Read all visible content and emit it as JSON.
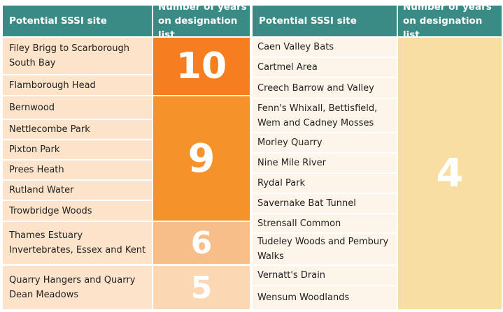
{
  "header": {
    "site_label": "Potential SSSI site",
    "years_line1": "Number of years",
    "years_line2": "on designation list"
  },
  "left_groups": [
    {
      "years": "10",
      "color": "#f57f1f",
      "sites": [
        "Filey Brigg to Scarborough South Bay",
        "Flamborough Head"
      ]
    },
    {
      "years": "9",
      "color": "#f6922a",
      "sites": [
        "Bernwood",
        "Nettlecombe Park",
        "Pixton Park",
        "Prees Heath",
        "Rutland Water",
        "Trowbridge Woods"
      ]
    },
    {
      "years": "6",
      "color": "#f8be8a",
      "sites": [
        "Thames Estuary Invertebrates, Essex and Kent"
      ]
    },
    {
      "years": "5",
      "color": "#fbd7b4",
      "sites": [
        "Quarry Hangers and Quarry Dean Meadows"
      ]
    }
  ],
  "right_group": {
    "years": "4",
    "color": "#f9dea4",
    "sites": [
      "Caen Valley Bats",
      "Cartmel Area",
      "Creech Barrow and Valley",
      "Fenn's Whixall, Bettisfield, Wem and Cadney Mosses",
      "Morley Quarry",
      "Nine Mile River",
      "Rydal Park",
      "Savernake Bat Tunnel",
      "Strensall Common",
      "Tudeley Woods and Pembury Walks",
      "Vernatt's Drain",
      "Wensum Woodlands"
    ]
  },
  "colors": {
    "header": "#3a8a85",
    "left_cell": "#fce3c9",
    "right_cell": "#fef5ea"
  }
}
